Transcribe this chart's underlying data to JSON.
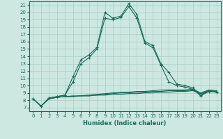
{
  "xlabel": "Humidex (Indice chaleur)",
  "ylabel": "",
  "bg_color": "#cce8e0",
  "line_color": "#1a6b5a",
  "grid_color": "#aacfc5",
  "xlim": [
    -0.5,
    23.5
  ],
  "ylim": [
    6.5,
    21.5
  ],
  "yticks": [
    7,
    8,
    9,
    10,
    11,
    12,
    13,
    14,
    15,
    16,
    17,
    18,
    19,
    20,
    21
  ],
  "xticks": [
    0,
    1,
    2,
    3,
    4,
    5,
    6,
    7,
    8,
    9,
    10,
    11,
    12,
    13,
    14,
    15,
    16,
    17,
    18,
    19,
    20,
    21,
    22,
    23
  ],
  "line1_x": [
    0,
    1,
    2,
    3,
    4,
    5,
    6,
    7,
    8,
    9,
    10,
    11,
    12,
    13,
    14,
    15,
    16,
    17,
    18,
    19,
    20,
    21,
    22,
    23
  ],
  "line1_y": [
    8.2,
    7.2,
    8.3,
    8.5,
    8.7,
    11.2,
    13.5,
    14.2,
    15.2,
    20.0,
    19.2,
    19.5,
    21.2,
    19.7,
    16.0,
    15.5,
    13.0,
    11.8,
    10.2,
    10.0,
    9.7,
    8.7,
    9.3,
    9.2
  ],
  "line2_x": [
    0,
    1,
    2,
    3,
    4,
    5,
    6,
    7,
    8,
    9,
    10,
    11,
    12,
    13,
    14,
    15,
    16,
    17,
    18,
    19,
    20,
    21,
    22,
    23
  ],
  "line2_y": [
    8.2,
    7.2,
    8.3,
    8.5,
    8.7,
    10.5,
    13.0,
    13.8,
    15.0,
    19.2,
    19.0,
    19.3,
    20.8,
    19.2,
    15.8,
    15.2,
    12.8,
    10.5,
    10.0,
    9.8,
    9.5,
    8.6,
    9.2,
    9.1
  ],
  "flat1_x": [
    0,
    1,
    2,
    3,
    4,
    5,
    6,
    7,
    8,
    9,
    10,
    11,
    12,
    13,
    14,
    15,
    16,
    17,
    18,
    19,
    20,
    21,
    22,
    23
  ],
  "flat1_y": [
    8.2,
    7.2,
    8.2,
    8.4,
    8.5,
    8.5,
    8.6,
    8.6,
    8.7,
    8.7,
    8.8,
    8.8,
    8.9,
    8.9,
    9.0,
    9.0,
    9.1,
    9.1,
    9.2,
    9.2,
    9.3,
    8.9,
    9.2,
    9.2
  ],
  "flat2_x": [
    0,
    1,
    2,
    3,
    4,
    5,
    6,
    7,
    8,
    9,
    10,
    11,
    12,
    13,
    14,
    15,
    16,
    17,
    18,
    19,
    20,
    21,
    22,
    23
  ],
  "flat2_y": [
    8.2,
    7.2,
    8.2,
    8.4,
    8.5,
    8.5,
    8.6,
    8.6,
    8.7,
    8.8,
    8.9,
    9.0,
    9.0,
    9.1,
    9.1,
    9.2,
    9.2,
    9.3,
    9.3,
    9.3,
    9.4,
    8.9,
    9.3,
    9.2
  ],
  "flat3_x": [
    0,
    1,
    2,
    3,
    4,
    5,
    6,
    7,
    8,
    9,
    10,
    11,
    12,
    13,
    14,
    15,
    16,
    17,
    18,
    19,
    20,
    21,
    22,
    23
  ],
  "flat3_y": [
    8.2,
    7.2,
    8.2,
    8.4,
    8.5,
    8.6,
    8.6,
    8.7,
    8.8,
    8.9,
    9.0,
    9.1,
    9.1,
    9.2,
    9.2,
    9.3,
    9.4,
    9.4,
    9.4,
    9.4,
    9.5,
    9.0,
    9.4,
    9.3
  ]
}
